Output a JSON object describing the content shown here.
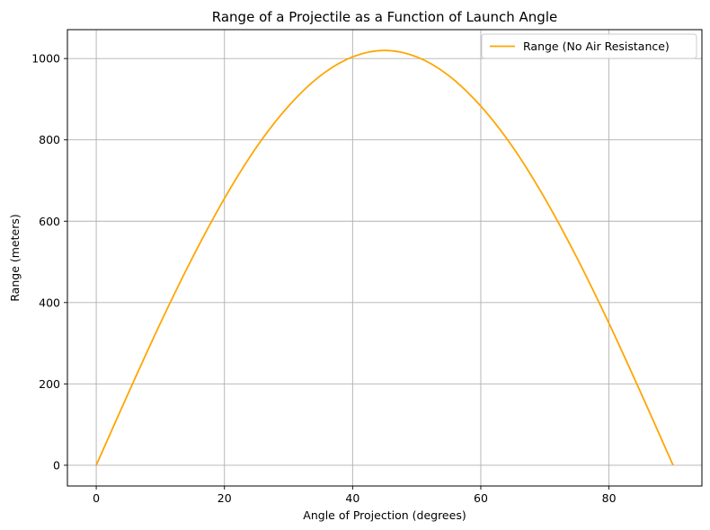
{
  "chart_data": {
    "type": "line",
    "title": "Range of a Projectile as a Function of Launch Angle",
    "xlabel": "Angle of Projection (degrees)",
    "ylabel": "Range (meters)",
    "xlim": [
      -4.5,
      94.5
    ],
    "ylim": [
      -51,
      1071
    ],
    "xticks": [
      0,
      20,
      40,
      60,
      80
    ],
    "yticks": [
      0,
      200,
      400,
      600,
      800,
      1000
    ],
    "xtick_labels": [
      "0",
      "20",
      "40",
      "60",
      "80"
    ],
    "ytick_labels": [
      "0",
      "200",
      "400",
      "600",
      "800",
      "1000"
    ],
    "grid": true,
    "legend_position": "top-right",
    "series": [
      {
        "name": "Range (No Air Resistance)",
        "color": "#ffa500",
        "x": [
          0,
          5,
          10,
          15,
          20,
          25,
          30,
          35,
          40,
          45,
          50,
          55,
          60,
          65,
          70,
          75,
          80,
          85,
          90
        ],
        "y": [
          0,
          177,
          349,
          510,
          656,
          782,
          883,
          958,
          1004,
          1020,
          1004,
          958,
          883,
          782,
          656,
          510,
          349,
          177,
          0
        ]
      }
    ]
  }
}
